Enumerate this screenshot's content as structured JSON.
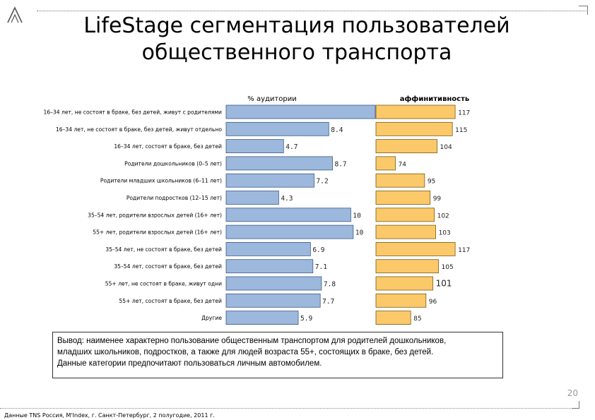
{
  "header": {
    "title_line1": "LifeStage сегментация пользователей",
    "title_line2": "общественного транспорта"
  },
  "colors": {
    "audience_bar": "#9db8dd",
    "audience_border": "#3a5a86",
    "affinity_bar": "#fbc96a",
    "affinity_border": "#7a5a10"
  },
  "chart_data": {
    "type": "bar",
    "orientation": "horizontal",
    "categories": [
      "16–34 лет, не состоят в браке, без детей, живут с родителями",
      "16–34 лет, не состоят в браке, без детей, живут отдельно",
      "16–34 лет, состоят в браке, без детей",
      "Родители дошкольников (0–5 лет)",
      "Родители младших школьников (6–11 лет)",
      "Родители подростков (12–15 лет)",
      "35–54 лет, родители взрослых детей (16+ лет)",
      "55+ лет, родители взрослых детей (16+ лет)",
      "35–54 лет, не состоят в браке, без детей",
      "35–54 лет, состоят в браке, без детей",
      "55+ лет, не состоят в браке, живут одни",
      "55+ лет, состоят в браке, без детей",
      "Другие"
    ],
    "series": [
      {
        "name": "% аудитории",
        "values": [
          12.2,
          8.4,
          4.7,
          8.7,
          7.2,
          4.3,
          10.2,
          10.4,
          6.9,
          7.1,
          7.8,
          7.7,
          5.9
        ],
        "labels": [
          "",
          "8.4",
          "4.7",
          "8.7",
          "7.2",
          "4.3",
          "10",
          "10",
          "6.9",
          "7.1",
          "7.8",
          "7.7",
          "5.9"
        ],
        "xlim": [
          0,
          12.2
        ]
      },
      {
        "name": "аффинитивность",
        "values": [
          117,
          115,
          104,
          74,
          95,
          99,
          102,
          103,
          117,
          105,
          101,
          96,
          85
        ],
        "labels": [
          "117",
          "115",
          "104",
          "74",
          "95",
          "99",
          "102",
          "103",
          "117",
          "105",
          "101",
          "96",
          "85"
        ],
        "xlim": [
          60,
          120
        ]
      }
    ]
  },
  "conclusion": {
    "line1": "Вывод: наименее характерно пользование общественным транспортом для родителей дошкольников,",
    "line2": "младших школьников, подростков, а также для людей возраста 55+, состоящих в браке, без детей.",
    "line3": "Данные категории предпочитают пользоваться личным автомобилем."
  },
  "footer": {
    "page_number": "20",
    "source": "Данные TNS Россия, M'Index, г. Санкт-Петербург, 2 полугодие, 2011 г."
  }
}
